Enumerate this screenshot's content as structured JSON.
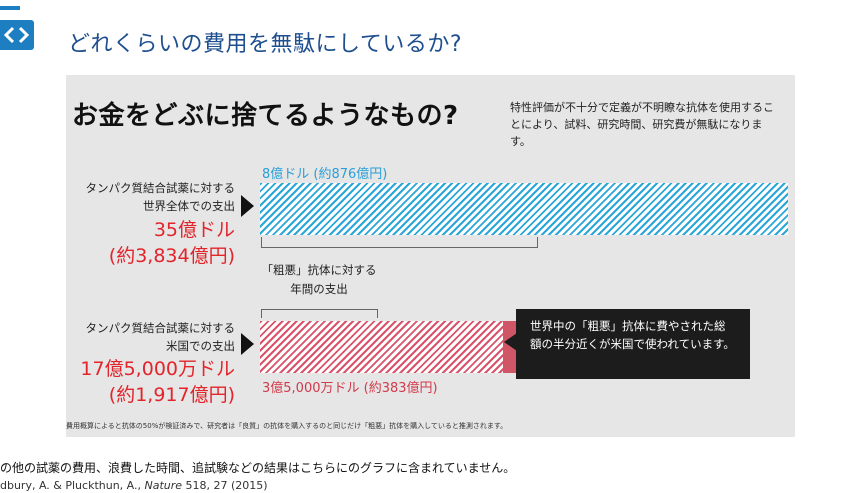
{
  "slide": {
    "title": "どれくらいの費用を無駄にしているか?",
    "logo_icon": "chevron-left-icon"
  },
  "infographic": {
    "headline": "お金をどぶに捨てるようなもの?",
    "note": "特性評価が不十分で定義が不明瞭な抗体を使用することにより、試料、研究時間、研究費が無駄になります。",
    "world": {
      "label_line1": "タンパク質結合試薬に対する",
      "label_line2": "世界全体での支出",
      "amount": "35億ドル",
      "amount_yen": "(約3,834億円)",
      "bar_label": "8億ドル (約876億円)"
    },
    "middle_label_line1": "「粗悪」抗体に対する",
    "middle_label_line2": "年間の支出",
    "us": {
      "label_line1": "タンパク質結合試薬に対する",
      "label_line2": "米国での支出",
      "amount": "17億5,000万ドル",
      "amount_yen": "(約1,917億円)",
      "bar_label": "3億5,000万ドル (約383億円)"
    },
    "callout": "世界中の「粗悪」抗体に費やされた総額の半分近くが米国で使われています。",
    "footnote": "費用概算によると抗体の50%が検証済みで、研究者は「良質」の抗体を購入するのと同じだけ「粗悪」抗体を購入していると推測されます。",
    "colors": {
      "blue": "#1fa3d6",
      "red": "#cf5667",
      "amount_red": "#e3242b"
    }
  },
  "chart_data": {
    "type": "bar",
    "categories": [
      "世界全体",
      "米国"
    ],
    "series": [
      {
        "values": [
          8,
          3.5
        ]
      },
      {
        "values": [
          35,
          17.5
        ]
      }
    ],
    "unit": "億ドル"
  },
  "captions": {
    "line1": "の他の試薬の費用、浪費した時間、追試験などの結果はこちらにのグラフに含まれていません。",
    "line2_prefix": "dbury, A. & Pluckthun, A., ",
    "line2_journal": "Nature",
    "line2_suffix": " 518, 27 (2015)"
  }
}
